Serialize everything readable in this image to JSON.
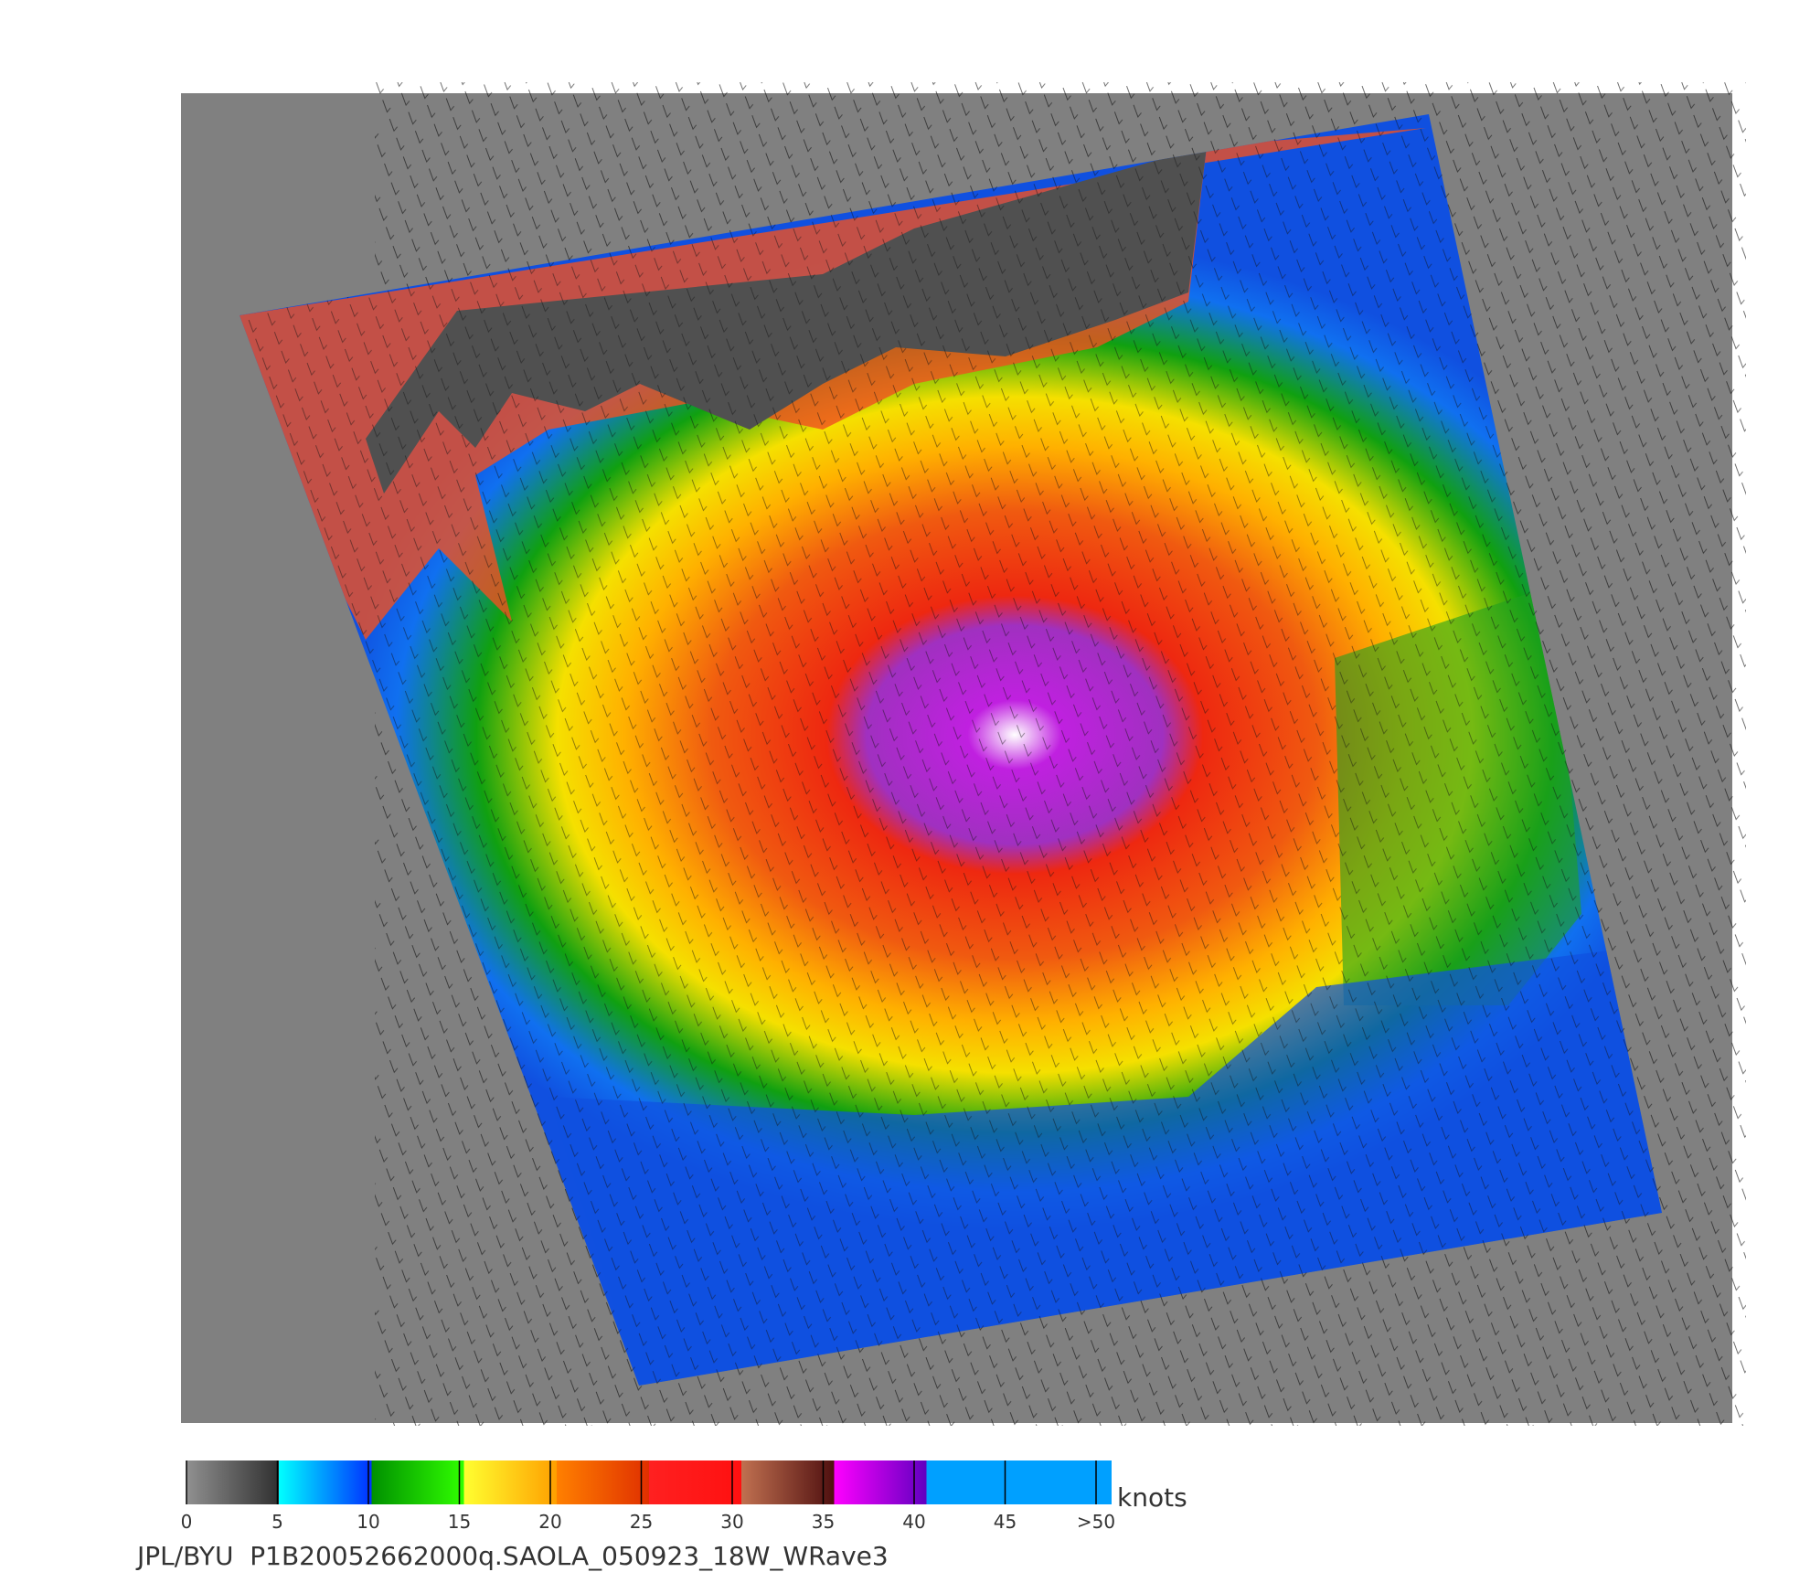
{
  "colorbar": {
    "lim": [
      0,
      50
    ],
    "ticks": [
      0,
      5,
      10,
      15,
      20,
      25,
      30,
      35,
      40,
      45,
      {
        "value": 50,
        "label": ">50"
      }
    ],
    "unit": "knots"
  },
  "caption": "JPL/BYU  P1B20052662000q.SAOLA_050923_18W_WRave3"
}
